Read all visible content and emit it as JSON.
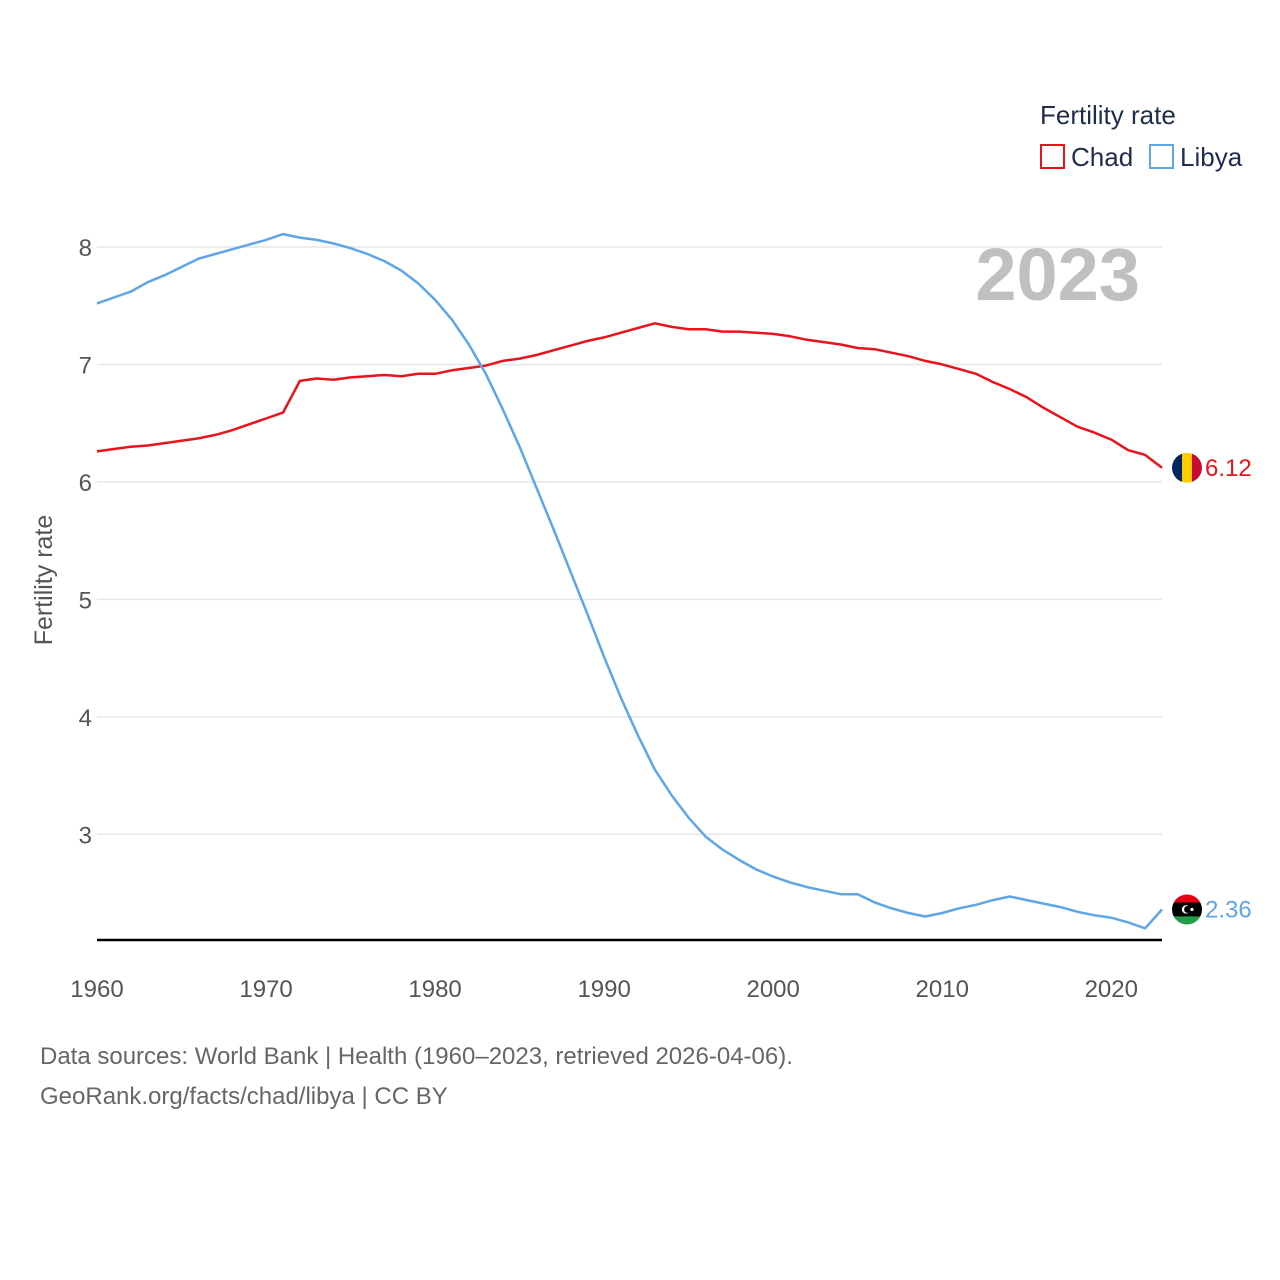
{
  "chart_data": {
    "type": "line",
    "legend_title": "Fertility rate",
    "ylabel": "Fertility rate",
    "xlabel": "",
    "current_year": "2023",
    "xlim": [
      1960,
      2023
    ],
    "ylim": [
      2.1,
      8.4
    ],
    "x_ticks": [
      1960,
      1970,
      1980,
      1990,
      2000,
      2010,
      2020
    ],
    "y_ticks": [
      3,
      4,
      5,
      6,
      7,
      8
    ],
    "legend_position": "top-right",
    "x": [
      1960,
      1961,
      1962,
      1963,
      1964,
      1965,
      1966,
      1967,
      1968,
      1969,
      1970,
      1971,
      1972,
      1973,
      1974,
      1975,
      1976,
      1977,
      1978,
      1979,
      1980,
      1981,
      1982,
      1983,
      1984,
      1985,
      1986,
      1987,
      1988,
      1989,
      1990,
      1991,
      1992,
      1993,
      1994,
      1995,
      1996,
      1997,
      1998,
      1999,
      2000,
      2001,
      2002,
      2003,
      2004,
      2005,
      2006,
      2007,
      2008,
      2009,
      2010,
      2011,
      2012,
      2013,
      2014,
      2015,
      2016,
      2017,
      2018,
      2019,
      2020,
      2021,
      2022,
      2023
    ],
    "series": [
      {
        "name": "Chad",
        "color": "#e8141c",
        "end_label": "6.12",
        "flag": "chad-flag",
        "values": [
          6.26,
          6.28,
          6.3,
          6.31,
          6.33,
          6.35,
          6.37,
          6.4,
          6.44,
          6.49,
          6.54,
          6.59,
          6.86,
          6.88,
          6.87,
          6.89,
          6.9,
          6.91,
          6.9,
          6.92,
          6.92,
          6.95,
          6.97,
          6.99,
          7.03,
          7.05,
          7.08,
          7.12,
          7.16,
          7.2,
          7.23,
          7.27,
          7.31,
          7.35,
          7.32,
          7.3,
          7.3,
          7.28,
          7.28,
          7.27,
          7.26,
          7.24,
          7.21,
          7.19,
          7.17,
          7.14,
          7.13,
          7.1,
          7.07,
          7.03,
          7.0,
          6.96,
          6.92,
          6.85,
          6.79,
          6.72,
          6.63,
          6.55,
          6.47,
          6.42,
          6.36,
          6.27,
          6.23,
          6.12
        ]
      },
      {
        "name": "Libya",
        "color": "#5ea6e6",
        "end_label": "2.36",
        "flag": "libya-flag",
        "values": [
          7.52,
          7.57,
          7.62,
          7.7,
          7.76,
          7.83,
          7.9,
          7.94,
          7.98,
          8.02,
          8.06,
          8.11,
          8.08,
          8.06,
          8.03,
          7.99,
          7.94,
          7.88,
          7.8,
          7.69,
          7.55,
          7.38,
          7.17,
          6.92,
          6.62,
          6.3,
          5.95,
          5.6,
          5.24,
          4.88,
          4.51,
          4.16,
          3.84,
          3.55,
          3.33,
          3.14,
          2.98,
          2.87,
          2.78,
          2.7,
          2.64,
          2.59,
          2.55,
          2.52,
          2.49,
          2.49,
          2.42,
          2.37,
          2.33,
          2.3,
          2.33,
          2.37,
          2.4,
          2.44,
          2.47,
          2.44,
          2.41,
          2.38,
          2.34,
          2.31,
          2.29,
          2.25,
          2.2,
          2.36
        ]
      }
    ]
  },
  "footer": {
    "line1": "Data sources: World Bank | Health (1960–2023, retrieved 2026-04-06).",
    "line2": "GeoRank.org/facts/chad/libya | CC BY"
  }
}
